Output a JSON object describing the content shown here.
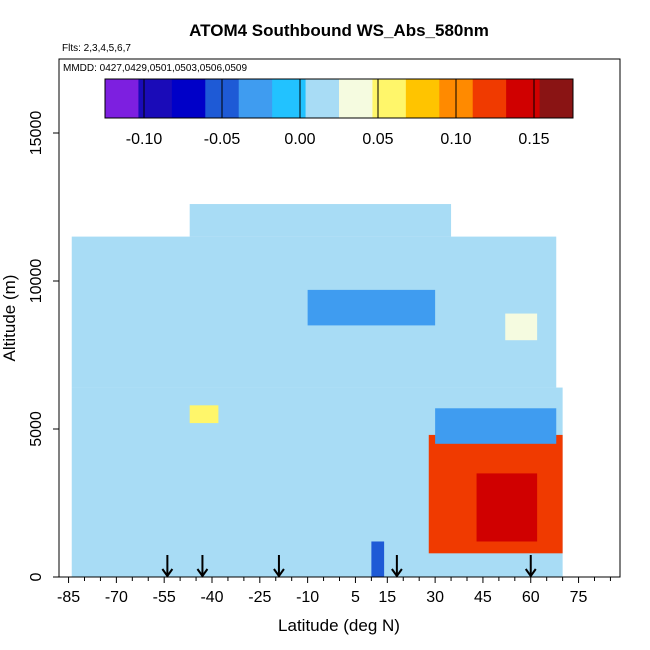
{
  "chart_data": {
    "type": "heatmap",
    "title": "ATOM4 Southbound WS_Abs_580nm",
    "subtitle_flights": "Flts: 2,3,4,5,6,7",
    "subtitle_dates": "MMDD: 0427,0429,0501,0503,0506,0509",
    "xlabel": "Latitude (deg N)",
    "ylabel": "Altitude (m)",
    "xlim": [
      -88,
      88
    ],
    "ylim": [
      0,
      17500
    ],
    "x_ticks": [
      -85,
      -70,
      -55,
      -40,
      -25,
      -10,
      5,
      15,
      30,
      45,
      60,
      75
    ],
    "x_tick_labels": [
      "-85",
      "-70",
      "-55",
      "-40",
      "-25",
      "-10",
      "5",
      "15",
      "30",
      "45",
      "60",
      "75"
    ],
    "y_ticks": [
      0,
      5000,
      10000,
      15000
    ],
    "y_tick_labels": [
      "0",
      "5000",
      "10000",
      "15000"
    ],
    "colorbar": {
      "range": [
        -0.125,
        0.175
      ],
      "ticks": [
        -0.1,
        -0.05,
        0.0,
        0.05,
        0.1,
        0.15
      ],
      "tick_labels": [
        "-0.10",
        "-0.05",
        "0.00",
        "0.05",
        "0.10",
        "0.15"
      ],
      "colors": [
        "#7d1fe0",
        "#1a0bb8",
        "#0000c8",
        "#1e5ad6",
        "#3f9cf0",
        "#22c2ff",
        "#a8dcf5",
        "#f5fbe0",
        "#fff66a",
        "#ffc400",
        "#ff8a00",
        "#f03a00",
        "#d00000",
        "#8a1414"
      ]
    },
    "grid": false,
    "vertical_profiles_lat": [
      -54,
      -43,
      -19,
      18,
      60
    ],
    "regions": [
      {
        "lat": [
          -84,
          70
        ],
        "alt": [
          0,
          6400
        ],
        "value": 0.005
      },
      {
        "lat": [
          -84,
          68
        ],
        "alt": [
          6400,
          11500
        ],
        "value": 0.008
      },
      {
        "lat": [
          -47,
          35
        ],
        "alt": [
          11500,
          12600
        ],
        "value": 0.01
      },
      {
        "lat": [
          28,
          70
        ],
        "alt": [
          800,
          4800
        ],
        "value": 0.12
      },
      {
        "lat": [
          43,
          62
        ],
        "alt": [
          1200,
          3500
        ],
        "value": 0.15
      },
      {
        "lat": [
          30,
          68
        ],
        "alt": [
          4500,
          5700
        ],
        "value": -0.03
      },
      {
        "lat": [
          10,
          14
        ],
        "alt": [
          0,
          1200
        ],
        "value": -0.06
      },
      {
        "lat": [
          -47,
          -38
        ],
        "alt": [
          5200,
          5800
        ],
        "value": 0.05
      },
      {
        "lat": [
          52,
          62
        ],
        "alt": [
          8000,
          8900
        ],
        "value": 0.04
      },
      {
        "lat": [
          -10,
          30
        ],
        "alt": [
          8500,
          9700
        ],
        "value": -0.02
      }
    ]
  }
}
